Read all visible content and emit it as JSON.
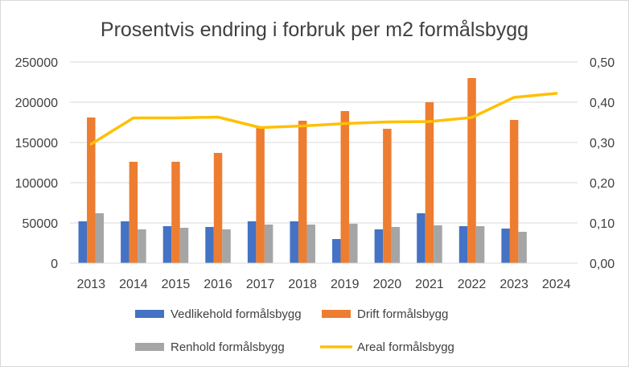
{
  "chart_data": {
    "type": "bar",
    "title": "Prosentvis endring i forbruk per m2 formålsbygg",
    "categories": [
      "2013",
      "2014",
      "2015",
      "2016",
      "2017",
      "2018",
      "2019",
      "2020",
      "2021",
      "2022",
      "2023",
      "2024"
    ],
    "y_left": {
      "ylim": [
        0,
        250000
      ],
      "ticks": [
        "0",
        "50000",
        "100000",
        "150000",
        "200000",
        "250000"
      ]
    },
    "y_right": {
      "ylim": [
        0,
        0.5
      ],
      "ticks": [
        "0,00",
        "0,10",
        "0,20",
        "0,30",
        "0,40",
        "0,50"
      ]
    },
    "grid": true,
    "legend_position": "bottom",
    "series": [
      {
        "name": "Vedlikehold formålsbygg",
        "type": "bar",
        "axis": "left",
        "color": "#4472c4",
        "values": [
          52000,
          52000,
          46000,
          45000,
          52000,
          52000,
          30000,
          42000,
          62000,
          46000,
          43000,
          null
        ]
      },
      {
        "name": "Drift formålsbygg",
        "type": "bar",
        "axis": "left",
        "color": "#ed7d31",
        "values": [
          181000,
          126000,
          126000,
          137000,
          168000,
          177000,
          189000,
          167000,
          200000,
          230000,
          178000,
          null
        ]
      },
      {
        "name": "Renhold formålsbygg",
        "type": "bar",
        "axis": "left",
        "color": "#a5a5a5",
        "values": [
          62000,
          42000,
          44000,
          42000,
          48000,
          48000,
          49000,
          45000,
          47000,
          46000,
          39000,
          null
        ]
      },
      {
        "name": "Areal formålsbygg",
        "type": "line",
        "axis": "right",
        "color": "#ffc000",
        "values": [
          0.296,
          0.361,
          0.361,
          0.363,
          0.337,
          0.341,
          0.347,
          0.351,
          0.352,
          0.362,
          0.412,
          0.422
        ]
      }
    ]
  }
}
